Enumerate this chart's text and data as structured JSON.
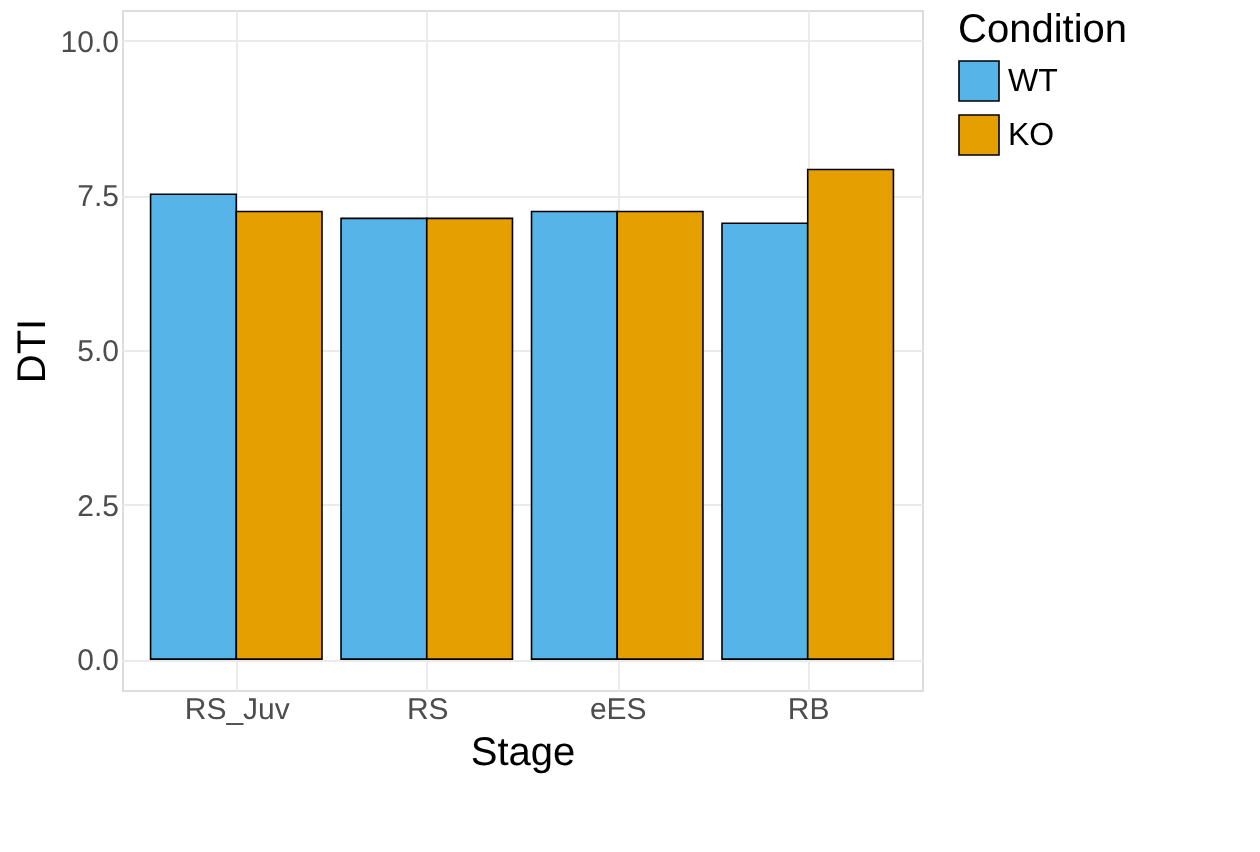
{
  "chart_data": {
    "type": "bar",
    "xlabel": "Stage",
    "ylabel": "DTI",
    "legend_title": "Condition",
    "categories": [
      "RS_Juv",
      "RS",
      "eES",
      "RB"
    ],
    "series": [
      {
        "name": "WT",
        "color": "#56b4e9",
        "values": [
          7.52,
          7.13,
          7.24,
          7.05
        ]
      },
      {
        "name": "KO",
        "color": "#e69f00",
        "values": [
          7.24,
          7.13,
          7.24,
          7.92
        ]
      }
    ],
    "ylim": [
      -0.5,
      10.5
    ],
    "yticks": [
      {
        "value": 0,
        "label": "0.0"
      },
      {
        "value": 2.5,
        "label": "2.5"
      },
      {
        "value": 5,
        "label": "5.0"
      },
      {
        "value": 7.5,
        "label": "7.5"
      },
      {
        "value": 10,
        "label": "10.0"
      }
    ],
    "grid": true,
    "legend": "right"
  }
}
